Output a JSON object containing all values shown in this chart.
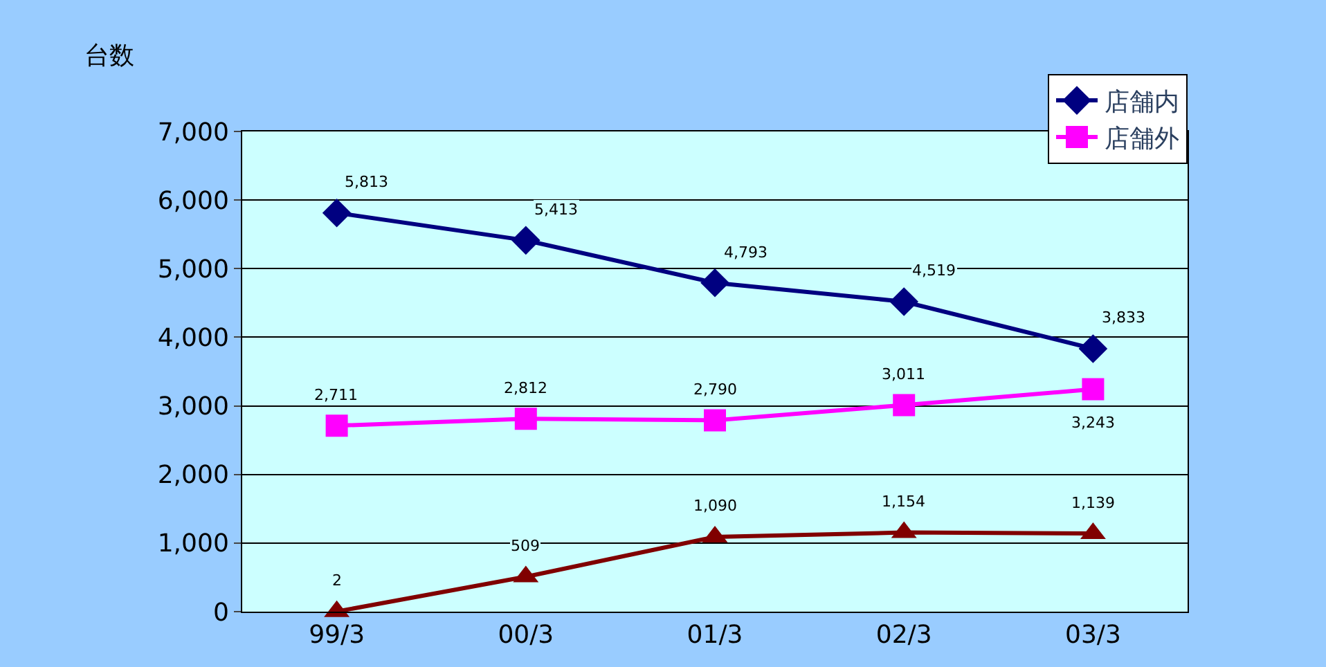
{
  "chart_data": {
    "type": "line",
    "ylabel": "台数",
    "categories": [
      "99/3",
      "00/3",
      "01/3",
      "02/3",
      "03/3"
    ],
    "series": [
      {
        "name": "店舗内",
        "color": "#000080",
        "marker": "diamond",
        "values": [
          5813,
          5413,
          4793,
          4519,
          3833
        ],
        "value_labels": [
          "5,813",
          "5,413",
          "4,793",
          "4,519",
          "3,833"
        ]
      },
      {
        "name": "店舗外",
        "color": "#ff00ff",
        "marker": "square",
        "values": [
          2711,
          2812,
          2790,
          3011,
          3243
        ],
        "value_labels": [
          "2,711",
          "2,812",
          "2,790",
          "3,011",
          "3,243"
        ]
      },
      {
        "color": "#800000",
        "marker": "triangle",
        "values": [
          2,
          509,
          1090,
          1154,
          1139
        ],
        "value_labels": [
          "2",
          "509",
          "1,090",
          "1,154",
          "1,139"
        ]
      }
    ],
    "ylim": [
      0,
      7000
    ],
    "yticks": [
      {
        "value": 0,
        "label": "0"
      },
      {
        "value": 1000,
        "label": "1,000"
      },
      {
        "value": 2000,
        "label": "2,000"
      },
      {
        "value": 3000,
        "label": "3,000"
      },
      {
        "value": 4000,
        "label": "4,000"
      },
      {
        "value": 5000,
        "label": "5,000"
      },
      {
        "value": 6000,
        "label": "6,000"
      },
      {
        "value": 7000,
        "label": "7,000"
      }
    ],
    "grid": "y",
    "legend": "top right",
    "line_style": "solid"
  }
}
